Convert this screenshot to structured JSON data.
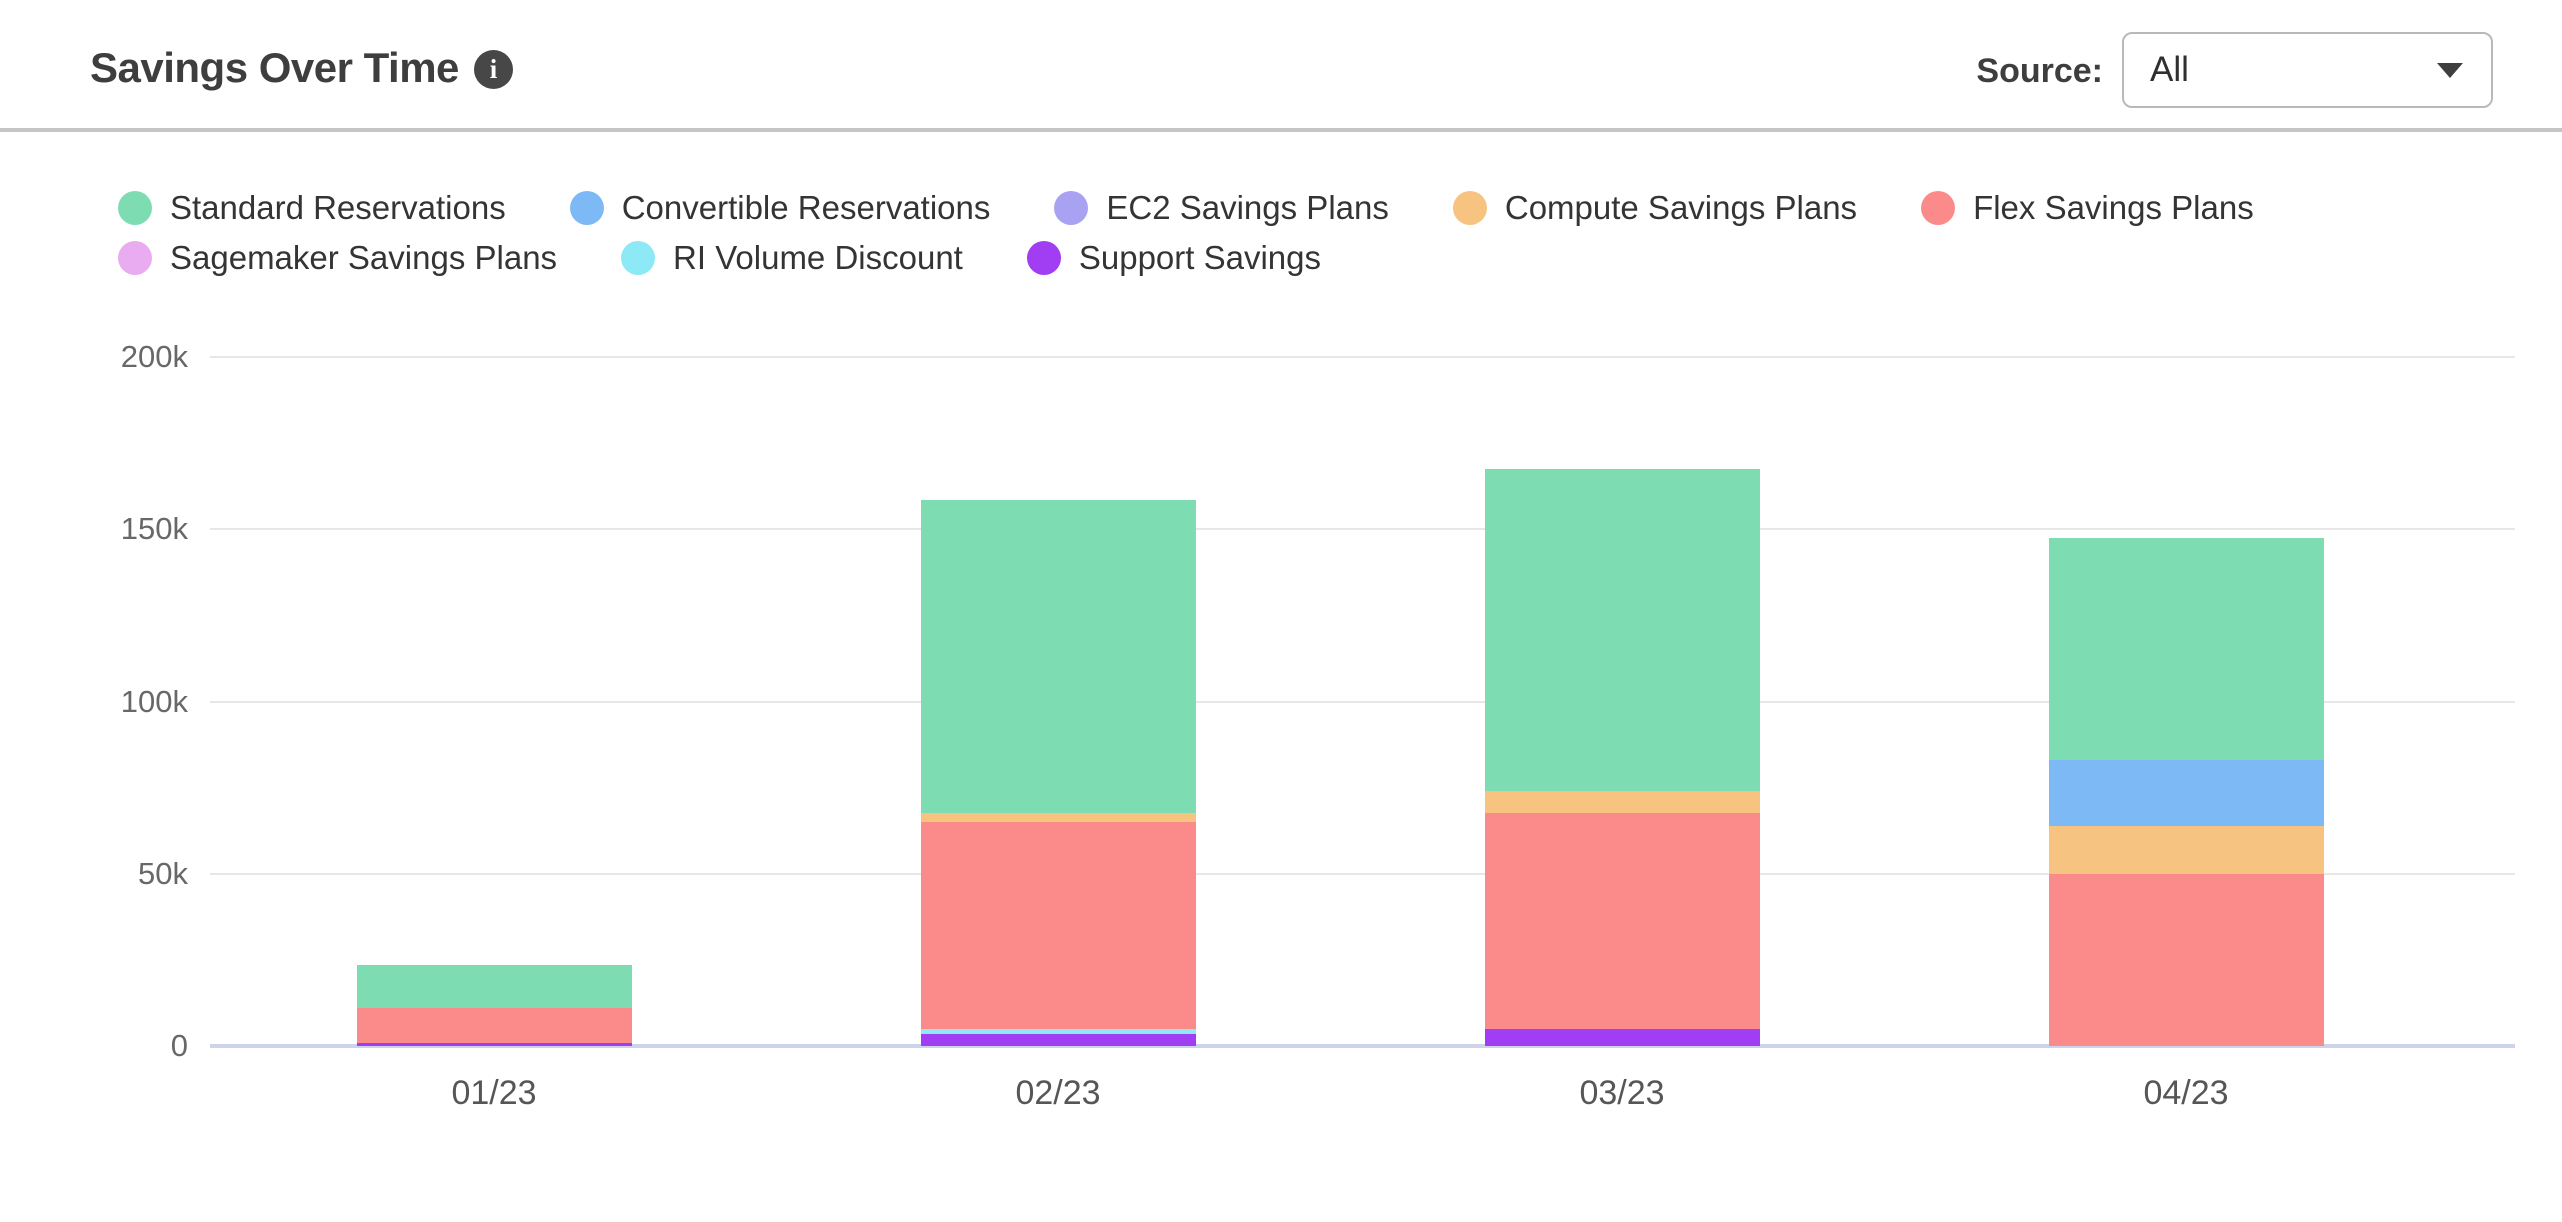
{
  "header": {
    "title": "Savings Over Time",
    "source_label": "Source:",
    "source_value": "All"
  },
  "chart_data": {
    "type": "bar",
    "stacked": true,
    "title": "Savings Over Time",
    "x": [
      "01/23",
      "02/23",
      "03/23",
      "04/23"
    ],
    "values_unit": "thousands (k)",
    "ylim": [
      0,
      200
    ],
    "yticks": [
      "0",
      "50k",
      "100k",
      "150k",
      "200k"
    ],
    "grid": "horizontal",
    "legend_position": "top",
    "stack_order": "reverse of legend order (Support Savings at bottom, Standard Reservations on top)",
    "series": [
      {
        "name": "Standard Reservations",
        "color": "#7edcb2",
        "values_k": [
          12.5,
          91,
          93.5,
          64.5
        ]
      },
      {
        "name": "Convertible Reservations",
        "color": "#7db9f5",
        "values_k": [
          0,
          0,
          0,
          19
        ]
      },
      {
        "name": "EC2 Savings Plans",
        "color": "#a9a2f2",
        "values_k": [
          0,
          0,
          0,
          0
        ]
      },
      {
        "name": "Compute Savings Plans",
        "color": "#f7c380",
        "values_k": [
          0,
          2.5,
          6.5,
          14
        ]
      },
      {
        "name": "Flex Savings Plans",
        "color": "#fb8b8b",
        "values_k": [
          10,
          60,
          62.5,
          50
        ]
      },
      {
        "name": "Sagemaker Savings Plans",
        "color": "#eaacf0",
        "values_k": [
          0,
          0,
          0,
          0
        ]
      },
      {
        "name": "RI Volume Discount",
        "color": "#8ee9f7",
        "values_k": [
          0,
          1.5,
          0,
          0
        ]
      },
      {
        "name": "Support Savings",
        "color": "#a13df2",
        "values_k": [
          1,
          3.5,
          5,
          0
        ]
      }
    ],
    "totals_k": [
      23.5,
      158.5,
      167.5,
      147.5
    ],
    "grid_color": "#e7e7e7",
    "axis_color": "#ccd3ea"
  }
}
